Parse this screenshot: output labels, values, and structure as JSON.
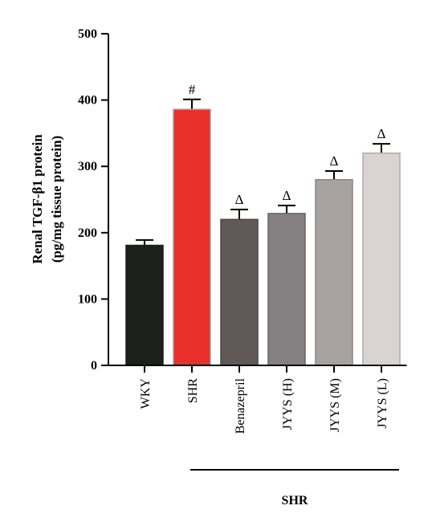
{
  "chart_data": {
    "type": "bar",
    "categories": [
      "WKY",
      "SHR",
      "Benazepril",
      "JYYS (H)",
      "JYYS (M)",
      "JYYS (L)"
    ],
    "values": [
      181,
      386,
      220,
      229,
      280,
      320
    ],
    "errors": [
      8,
      15,
      15,
      12,
      13,
      14
    ],
    "annotations": [
      "",
      "#",
      "Δ",
      "Δ",
      "Δ",
      "Δ"
    ],
    "bar_colors": [
      "#1c1f1c",
      "#e8302b",
      "#605957",
      "#858081",
      "#a8a2a3",
      "#d9d3d4"
    ],
    "bar_stroke": [
      "#1c1f1c",
      "#a0a0a0",
      "#4a4544",
      "#6a6566",
      "#8a8485",
      "#b0aaab"
    ],
    "ylabel_line1": "Renal TGF-β1 protein",
    "ylabel_line2": "(pg/mg tissue protein)",
    "ylim": [
      0,
      500
    ],
    "yticks": [
      "0",
      "100",
      "200",
      "300",
      "400",
      "500"
    ],
    "group_label": "SHR",
    "grid": false
  }
}
